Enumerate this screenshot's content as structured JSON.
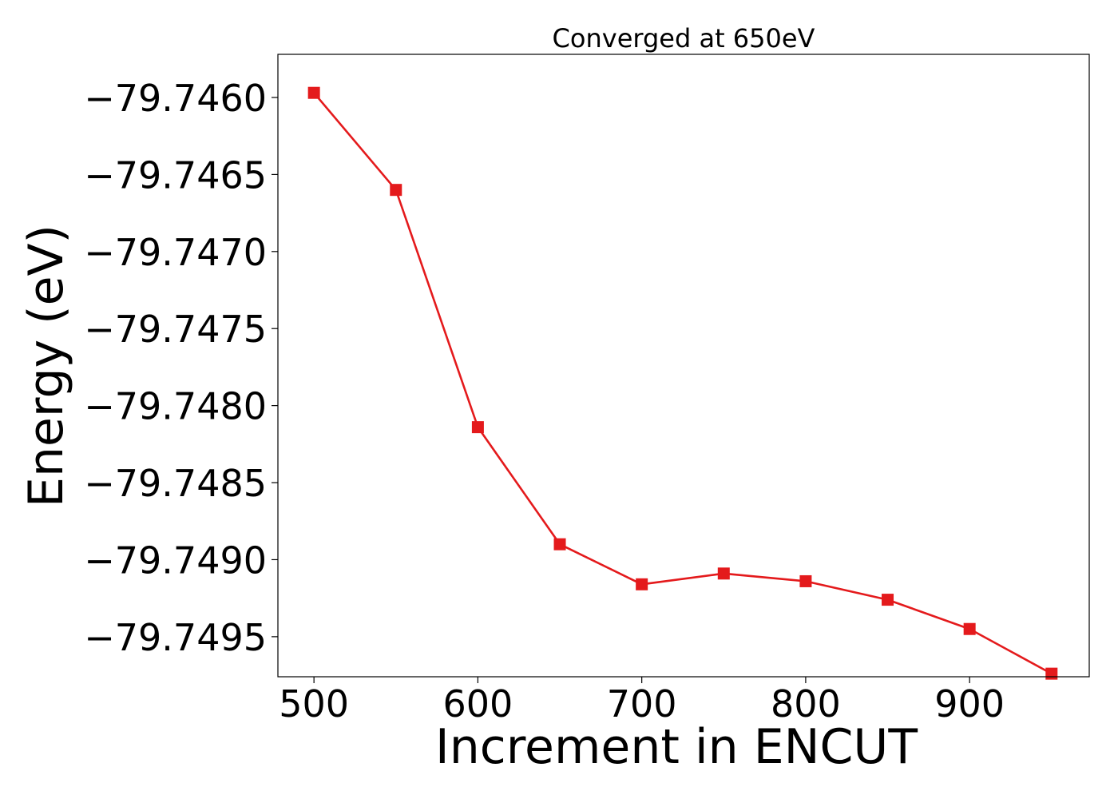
{
  "chart_data": {
    "type": "line",
    "title": "Converged at 650eV",
    "xlabel": "Increment in ENCUT",
    "ylabel": "Energy (eV)",
    "xlim": [
      478,
      973
    ],
    "ylim": [
      -79.74976,
      -79.74572
    ],
    "xticks": [
      500,
      600,
      700,
      800,
      900
    ],
    "xtick_labels": [
      "500",
      "600",
      "700",
      "800",
      "900"
    ],
    "yticks": [
      -79.746,
      -79.7465,
      -79.747,
      -79.7475,
      -79.748,
      -79.7485,
      -79.749,
      -79.7495
    ],
    "ytick_labels": [
      "−79.7460",
      "−79.7465",
      "−79.7470",
      "−79.7475",
      "−79.7480",
      "−79.7485",
      "−79.7490",
      "−79.7495"
    ],
    "grid": false,
    "series": [
      {
        "marker": "square",
        "color": "#e41a1c",
        "x": [
          500,
          550,
          600,
          650,
          700,
          750,
          800,
          850,
          900,
          950
        ],
        "y": [
          -79.74597,
          -79.7466,
          -79.74814,
          -79.7489,
          -79.74916,
          -79.74909,
          -79.74914,
          -79.74926,
          -79.74945,
          -79.74974
        ]
      }
    ]
  }
}
